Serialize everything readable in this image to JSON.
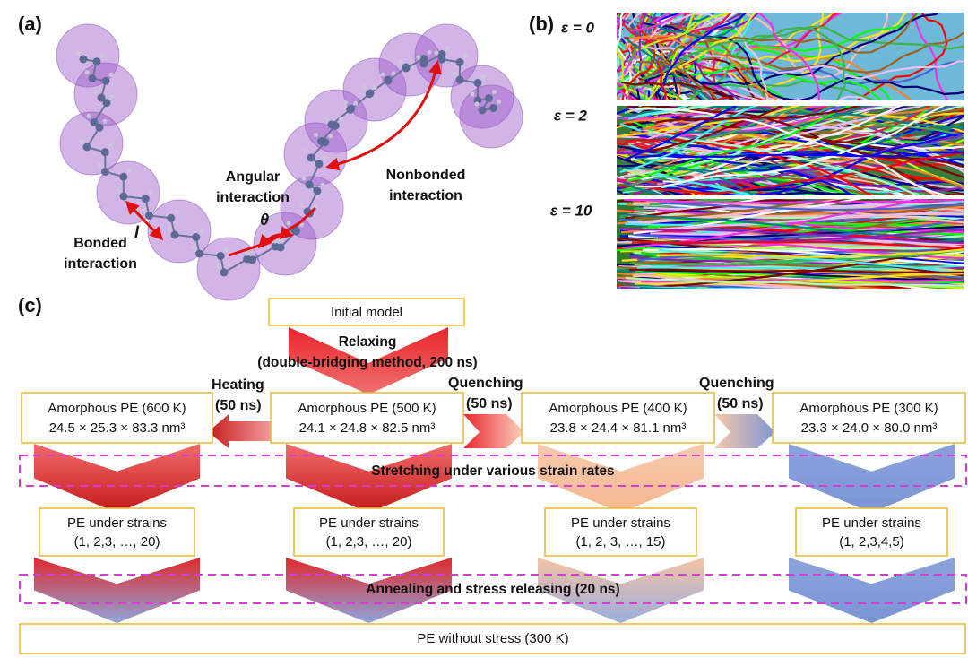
{
  "panel_a": {
    "label": "(a)",
    "bonded": [
      "Bonded",
      "interaction"
    ],
    "bond_length": "l",
    "angular": [
      "Angular",
      "interaction"
    ],
    "angle": "θ",
    "nonbonded": [
      "Nonbonded",
      "interaction"
    ]
  },
  "panel_b": {
    "label": "(b)",
    "strains": [
      "ε = 0",
      "ε = 2",
      "ε = 10"
    ]
  },
  "panel_c": {
    "label": "(c)",
    "initial": "Initial model",
    "relaxing": [
      "Relaxing",
      "(double-bridging method, 200 ns)"
    ],
    "states": [
      {
        "title": "Amorphous PE (600 K)",
        "dims": "24.5 × 25.3 × 83.3 nm³"
      },
      {
        "title": "Amorphous PE (500 K)",
        "dims": "24.1 × 24.8 × 82.5 nm³"
      },
      {
        "title": "Amorphous PE (400 K)",
        "dims": "23.8 × 24.4 × 81.1 nm³"
      },
      {
        "title": "Amorphous PE (300 K)",
        "dims": "23.3 × 24.0 × 80.0 nm³"
      }
    ],
    "transitions": [
      [
        "Heating",
        "(50 ns)"
      ],
      [
        "Quenching",
        "(50 ns)"
      ],
      [
        "Quenching",
        "(50 ns)"
      ]
    ],
    "stretching": "Stretching under various strain rates",
    "strained": [
      {
        "title": "PE under strains",
        "strains": "(1, 2,3, …, 20)"
      },
      {
        "title": "PE under strains",
        "strains": "(1, 2,3, …, 20)"
      },
      {
        "title": "PE under strains",
        "strains": "(1, 2, 3, …, 15)"
      },
      {
        "title": "PE under strains",
        "strains": "(1, 2,3,4,5)"
      }
    ],
    "annealing": "Annealing and stress releasing (20 ns)",
    "final": "PE without stress (300 K)"
  }
}
